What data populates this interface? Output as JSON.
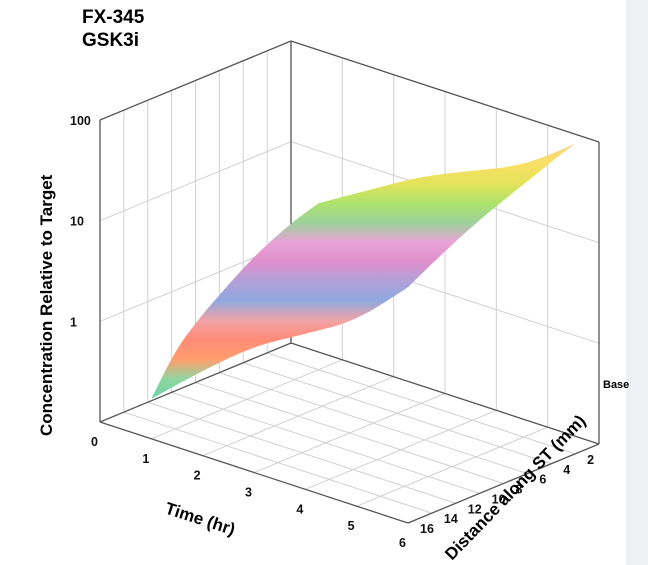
{
  "chart_data": {
    "type": "surface",
    "title_lines": [
      "FX-345",
      "GSK3i"
    ],
    "x_axis": {
      "label": "Time (hr)",
      "range": [
        0,
        6
      ],
      "ticks": [
        "0",
        "1",
        "2",
        "3",
        "4",
        "5",
        "6"
      ]
    },
    "y_axis": {
      "label": "Distance along ST (mm)",
      "range": [
        0,
        16
      ],
      "ticks": [
        "2",
        "4",
        "6",
        "8",
        "10",
        "12",
        "14",
        "16"
      ],
      "annotation": "Base"
    },
    "z_axis": {
      "label": "Concentration Relative to Target",
      "scale": "log",
      "range": [
        0.1,
        100
      ],
      "ticks": [
        "1",
        "10",
        "100"
      ]
    },
    "grid": true,
    "colormap": [
      "#6fcfa6",
      "#8fd6a0",
      "#ff9e6e",
      "#ff8b77",
      "#f0a3a6",
      "#8fa8df",
      "#b3a0d8",
      "#df8fcc",
      "#e8a3d6",
      "#9bd39a",
      "#aee36a",
      "#e4e35a",
      "#f9e064",
      "#f3d488"
    ],
    "series": [
      {
        "time_hr": 1.0,
        "distance_mm": [
          2,
          4,
          6,
          8,
          10,
          12,
          14,
          16
        ],
        "concentration": [
          4.5,
          3.8,
          3.0,
          2.2,
          1.5,
          1.0,
          0.6,
          0.25
        ]
      },
      {
        "time_hr": 2.0,
        "distance_mm": [
          2,
          4,
          6,
          8,
          10,
          12,
          14,
          16
        ],
        "concentration": [
          9,
          7.5,
          6.0,
          4.5,
          3.2,
          2.2,
          1.3,
          0.7
        ]
      },
      {
        "time_hr": 3.0,
        "distance_mm": [
          2,
          4,
          6,
          8,
          10,
          12,
          14,
          16
        ],
        "concentration": [
          18,
          14,
          11,
          8.5,
          6.5,
          4.5,
          3.0,
          1.8
        ]
      },
      {
        "time_hr": 4.0,
        "distance_mm": [
          2,
          4,
          6,
          8,
          10,
          12,
          14,
          16
        ],
        "concentration": [
          30,
          25,
          20,
          15,
          11,
          8.0,
          5.5,
          3.5
        ]
      },
      {
        "time_hr": 5.0,
        "distance_mm": [
          2,
          4,
          6,
          8,
          10,
          12,
          14,
          16
        ],
        "concentration": [
          50,
          42,
          34,
          26,
          20,
          14,
          10,
          7
        ]
      },
      {
        "time_hr": 6.0,
        "distance_mm": [
          2,
          4,
          6,
          8,
          10,
          12,
          14,
          16
        ],
        "concentration": [
          120,
          100,
          80,
          65,
          52,
          40,
          30,
          22
        ]
      }
    ]
  }
}
